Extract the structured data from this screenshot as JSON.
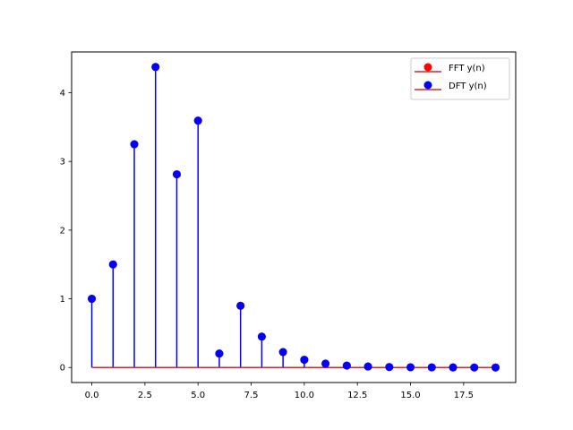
{
  "chart_data": {
    "type": "stem",
    "x": [
      0,
      1,
      2,
      3,
      4,
      5,
      6,
      7,
      8,
      9,
      10,
      11,
      12,
      13,
      14,
      15,
      16,
      17,
      18,
      19
    ],
    "series": [
      {
        "name": "FFT y(n)",
        "color": "#ff0000",
        "baseline_color": "#d62728",
        "values": [
          1.0,
          1.5,
          3.25,
          4.375,
          2.8125,
          3.59375,
          0.203125,
          0.8984375,
          0.44921875,
          0.224609375,
          0.1123046875,
          0.05615234375,
          0.028076171875,
          0.0140380859375,
          0.00701904296875,
          0.003509521484375,
          0.0017547607421875,
          0.00087738037109375,
          0.000438690185546875,
          0.0002193450927734375
        ]
      },
      {
        "name": "DFT y(n)",
        "color": "#0000ff",
        "baseline_color": "#d62728",
        "values": [
          1.0,
          1.5,
          3.25,
          4.375,
          2.8125,
          3.59375,
          0.203125,
          0.8984375,
          0.44921875,
          0.224609375,
          0.1123046875,
          0.05615234375,
          0.028076171875,
          0.0140380859375,
          0.00701904296875,
          0.003509521484375,
          0.0017547607421875,
          0.00087738037109375,
          0.000438690185546875,
          0.0002193450927734375
        ]
      }
    ],
    "xlim": [
      -0.95,
      19.95
    ],
    "ylim": [
      -0.21875,
      4.59375
    ],
    "xticks": [
      0.0,
      2.5,
      5.0,
      7.5,
      10.0,
      12.5,
      15.0,
      17.5
    ],
    "xtick_labels": [
      "0.0",
      "2.5",
      "5.0",
      "7.5",
      "10.0",
      "12.5",
      "15.0",
      "17.5"
    ],
    "yticks": [
      0,
      1,
      2,
      3,
      4
    ],
    "ytick_labels": [
      "0",
      "1",
      "2",
      "3",
      "4"
    ],
    "title": "",
    "xlabel": "",
    "ylabel": "",
    "grid": false,
    "legend_position": "top-right"
  }
}
